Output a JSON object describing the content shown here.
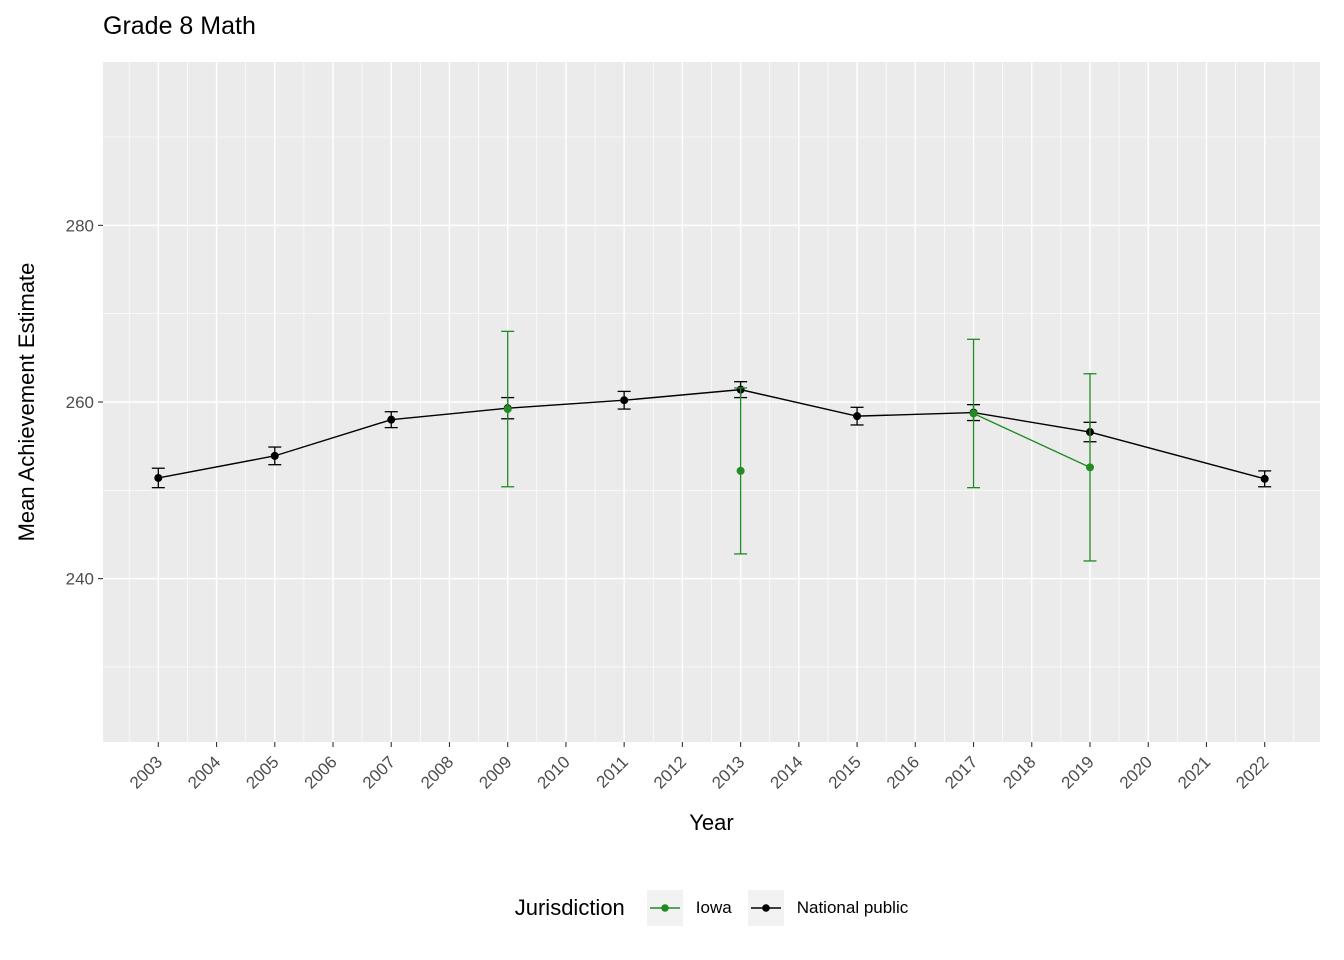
{
  "legend": {
    "title": "Jurisdiction",
    "items": [
      {
        "label": "Iowa",
        "color": "#228B22",
        "key": "iowa"
      },
      {
        "label": "National public",
        "color": "#000000",
        "key": "national-public"
      }
    ]
  },
  "colors": {
    "panel_bg": "#EBEBEB",
    "gridline": "#FFFFFF",
    "tick_label": "#4D4D4D",
    "axis_tick": "#333333",
    "legend_key_bg": "#F2F2F2",
    "iowa": "#228B22",
    "national_public": "#000000"
  },
  "chart_data": {
    "type": "line",
    "title": "Grade 8 Math",
    "xlabel": "Year",
    "ylabel": "Mean Achievement Estimate",
    "legend_position": "bottom",
    "grid": true,
    "xlim": [
      2002.05,
      2022.95
    ],
    "ylim": [
      221.5,
      298.5
    ],
    "x_ticks": [
      2003,
      2004,
      2005,
      2006,
      2007,
      2008,
      2009,
      2010,
      2011,
      2012,
      2013,
      2014,
      2015,
      2016,
      2017,
      2018,
      2019,
      2020,
      2021,
      2022
    ],
    "y_major_ticks": [
      240,
      260,
      280
    ],
    "y_minor_ticks": [
      230,
      250,
      270,
      290
    ],
    "series": [
      {
        "name": "National public",
        "key": "national-public",
        "color": "#000000",
        "points": [
          {
            "x": 2003,
            "y": 251.4,
            "err": 1.1
          },
          {
            "x": 2005,
            "y": 253.9,
            "err": 1.0
          },
          {
            "x": 2007,
            "y": 258.0,
            "err": 0.9
          },
          {
            "x": 2009,
            "y": 259.3,
            "err": 1.2
          },
          {
            "x": 2011,
            "y": 260.2,
            "err": 1.0
          },
          {
            "x": 2013,
            "y": 261.4,
            "err": 0.9
          },
          {
            "x": 2015,
            "y": 258.4,
            "err": 1.0
          },
          {
            "x": 2017,
            "y": 258.8,
            "err": 0.9
          },
          {
            "x": 2019,
            "y": 256.6,
            "err": 1.1
          },
          {
            "x": 2022,
            "y": 251.3,
            "err": 0.9
          }
        ],
        "line_x": [
          [
            2003,
            2005,
            2007,
            2009,
            2011,
            2013,
            2015,
            2017,
            2019,
            2022
          ]
        ]
      },
      {
        "name": "Iowa",
        "key": "iowa",
        "color": "#228B22",
        "points": [
          {
            "x": 2009,
            "y": 259.2,
            "err": 8.8
          },
          {
            "x": 2013,
            "y": 252.2,
            "err": 9.4
          },
          {
            "x": 2017,
            "y": 258.7,
            "err": 8.4
          },
          {
            "x": 2019,
            "y": 252.6,
            "err": 10.6
          }
        ],
        "line_x": [
          [
            2017,
            2019
          ]
        ]
      }
    ]
  }
}
